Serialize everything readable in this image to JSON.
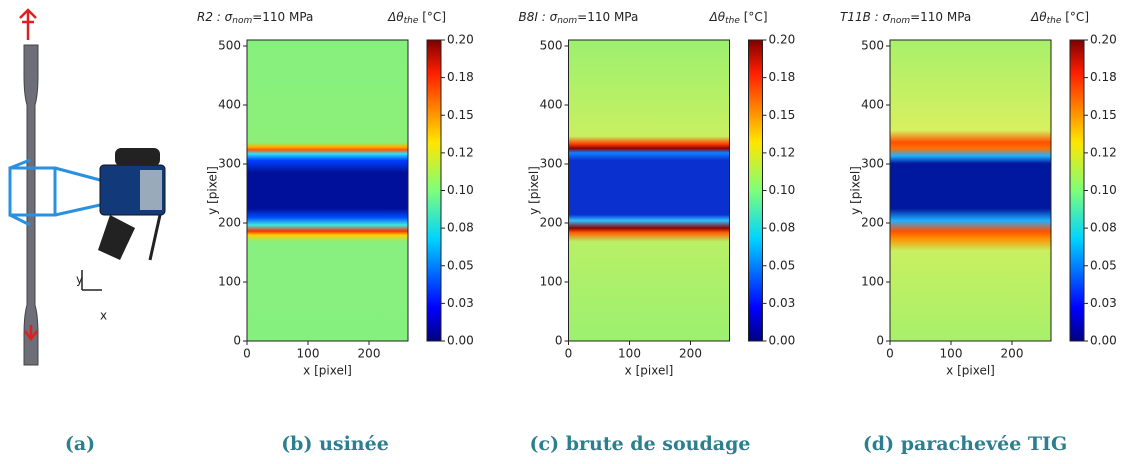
{
  "illustration": {
    "axis_y": "y",
    "axis_x": "x"
  },
  "maps": [
    {
      "title": {
        "prefix": "R2 : σ",
        "sub": "nom",
        "suffix": "=110 MPa"
      },
      "colorbar_label": {
        "prefix": "Δθ",
        "sub": "the",
        "suffix": " [°C]"
      },
      "xlabel": "x [pixel]",
      "ylabel": "y [pixel]",
      "xticks": [
        "0",
        "100",
        "200"
      ],
      "yticks": [
        "0",
        "100",
        "200",
        "300",
        "400",
        "500"
      ],
      "colorbar_ticks": [
        "0.00",
        "0.03",
        "0.05",
        "0.08",
        "0.10",
        "0.12",
        "0.15",
        "0.18",
        "0.20"
      ]
    },
    {
      "title": {
        "prefix": "B8I : σ",
        "sub": "nom",
        "suffix": "=110 MPa"
      },
      "colorbar_label": {
        "prefix": "Δθ",
        "sub": "the",
        "suffix": " [°C]"
      },
      "xlabel": "x [pixel]",
      "ylabel": "y [pixel]",
      "xticks": [
        "0",
        "100",
        "200"
      ],
      "yticks": [
        "0",
        "100",
        "200",
        "300",
        "400",
        "500"
      ],
      "colorbar_ticks": [
        "0.00",
        "0.03",
        "0.05",
        "0.08",
        "0.10",
        "0.12",
        "0.15",
        "0.18",
        "0.20"
      ]
    },
    {
      "title": {
        "prefix": "T11B : σ",
        "sub": "nom",
        "suffix": "=110 MPa"
      },
      "colorbar_label": {
        "prefix": "Δθ",
        "sub": "the",
        "suffix": " [°C]"
      },
      "xlabel": "x [pixel]",
      "ylabel": "y [pixel]",
      "xticks": [
        "0",
        "100",
        "200"
      ],
      "yticks": [
        "0",
        "100",
        "200",
        "300",
        "400",
        "500"
      ],
      "colorbar_ticks": [
        "0.00",
        "0.03",
        "0.05",
        "0.08",
        "0.10",
        "0.12",
        "0.15",
        "0.18",
        "0.20"
      ]
    }
  ],
  "captions": [
    "(a)",
    "(b) usinée",
    "(c) brute de soudage",
    "(d) parachevée TIG"
  ]
}
